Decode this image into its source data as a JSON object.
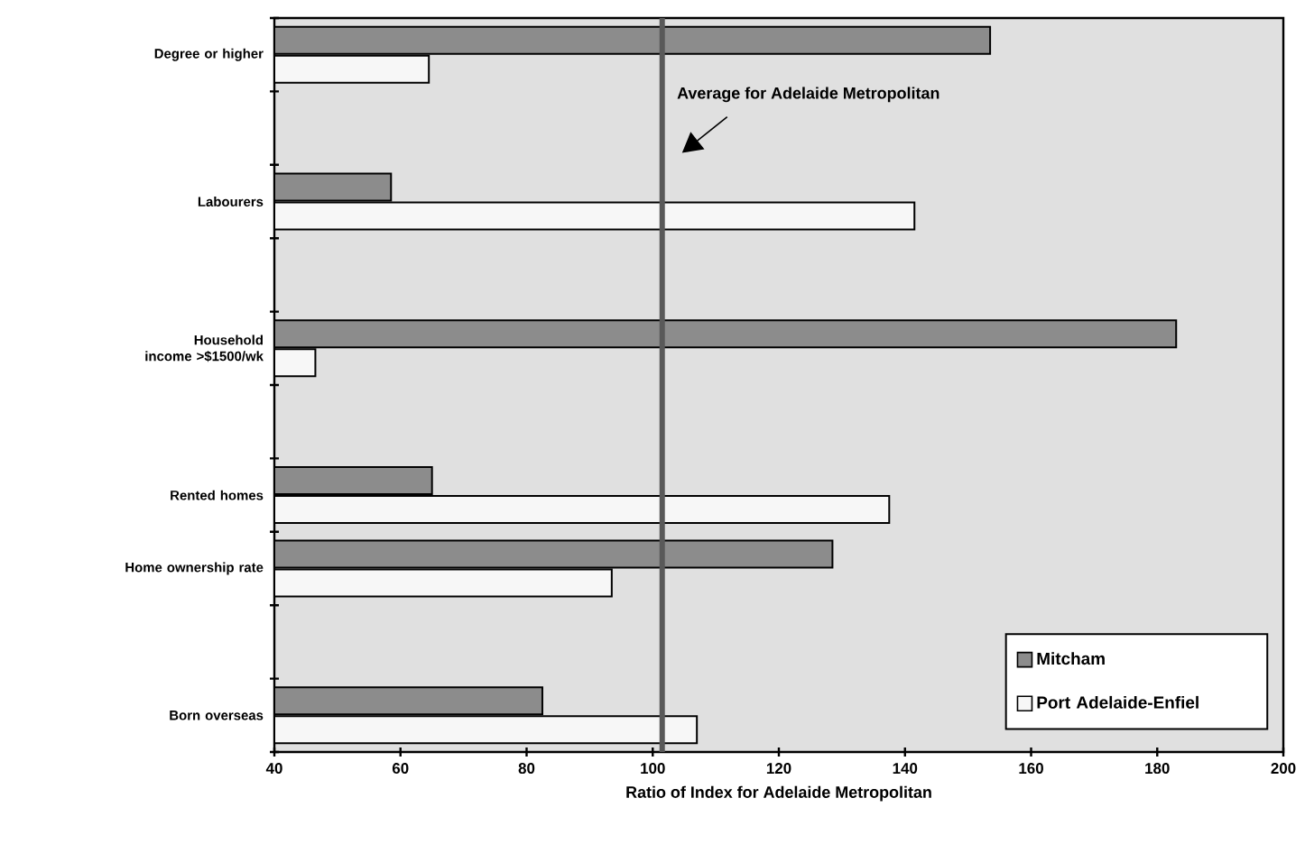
{
  "chart_data": {
    "type": "bar",
    "orientation": "horizontal",
    "categories": [
      "Degree or higher",
      null,
      "Labourers",
      null,
      "Household income >$1500/wk",
      null,
      "Rented homes",
      "Home ownership rate",
      null,
      "Born overseas"
    ],
    "series": [
      {
        "name": "Mitcham",
        "color": "#8c8c8c",
        "values": [
          153.5,
          null,
          58.5,
          null,
          183,
          null,
          65,
          128.5,
          null,
          82.5
        ]
      },
      {
        "name": "Port Adelaide-Enfiel",
        "color": "#f7f7f7",
        "values": [
          64.5,
          null,
          141.5,
          null,
          46.5,
          null,
          137.5,
          93.5,
          null,
          107
        ]
      }
    ],
    "xlabel": "Ratio of Index for Adelaide Metropolitan",
    "xlim": [
      40,
      200
    ],
    "xticks": [
      40,
      60,
      80,
      100,
      120,
      140,
      160,
      180,
      200
    ],
    "ref_lines": [
      {
        "axis": "x",
        "value": 101.5,
        "label": "Average for Adelaide Metropolitan",
        "color": "#595959"
      }
    ],
    "legend": "bottom right",
    "grid": false
  }
}
